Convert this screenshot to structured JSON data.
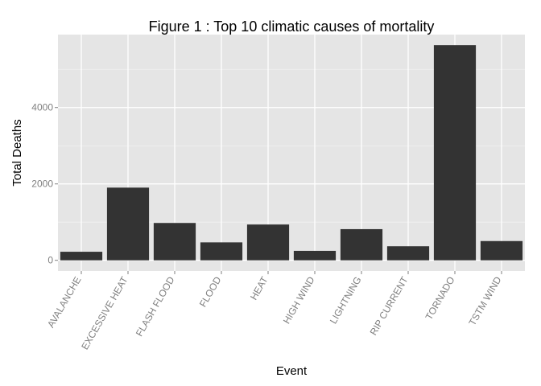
{
  "chart_data": {
    "type": "bar",
    "title": "Figure 1 : Top 10 climatic causes of mortality",
    "xlabel": "Event",
    "ylabel": "Total Deaths",
    "categories": [
      "AVALANCHE",
      "EXCESSIVE HEAT",
      "FLASH FLOOD",
      "FLOOD",
      "HEAT",
      "HIGH WIND",
      "LIGHTNING",
      "RIP CURRENT",
      "TORNADO",
      "TSTM WIND"
    ],
    "values": [
      224,
      1903,
      978,
      470,
      937,
      248,
      816,
      368,
      5633,
      504
    ],
    "yticks": [
      0,
      2000,
      4000
    ],
    "ylim": [
      -280,
      5910
    ],
    "grid": true,
    "legend": "none",
    "colors": {
      "bar": "#333333",
      "panel": "#e5e5e5",
      "grid_major": "#ffffff",
      "grid_minor": "#f2f2f2",
      "tick_label": "#7f7f7f"
    }
  }
}
